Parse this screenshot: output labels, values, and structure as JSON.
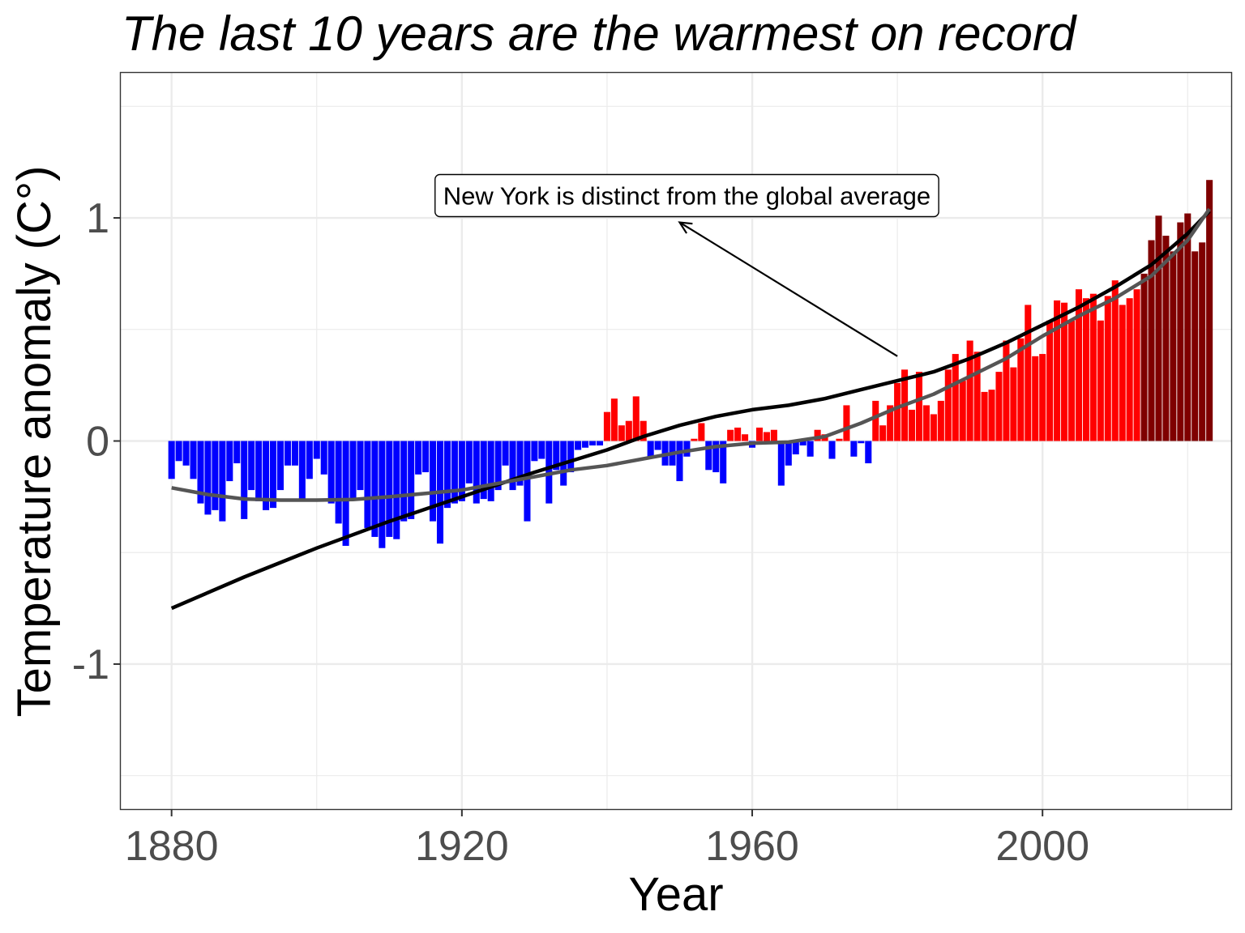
{
  "chart_data": {
    "type": "bar",
    "title": "The last 10 years are the warmest on record",
    "xlabel": "Year",
    "ylabel": "Temperature anomaly (C°)",
    "xlim": [
      1873,
      2026
    ],
    "ylim": [
      -1.65,
      1.65
    ],
    "x_ticks": [
      1880,
      1920,
      1960,
      2000
    ],
    "x_tick_labels": [
      "1880",
      "1920",
      "1960",
      "2000"
    ],
    "y_ticks": [
      -1,
      0,
      1
    ],
    "y_tick_labels": [
      "-1",
      "0",
      "1"
    ],
    "grid": true,
    "legend": "none",
    "colors": {
      "negative": "#0000ff",
      "positive": "#ff0000",
      "last_10_years": "#7f0000",
      "trend_linear": "#000000",
      "trend_smooth": "#555555",
      "grid": "#ebebeb"
    },
    "years": [
      1880,
      1881,
      1882,
      1883,
      1884,
      1885,
      1886,
      1887,
      1888,
      1889,
      1890,
      1891,
      1892,
      1893,
      1894,
      1895,
      1896,
      1897,
      1898,
      1899,
      1900,
      1901,
      1902,
      1903,
      1904,
      1905,
      1906,
      1907,
      1908,
      1909,
      1910,
      1911,
      1912,
      1913,
      1914,
      1915,
      1916,
      1917,
      1918,
      1919,
      1920,
      1921,
      1922,
      1923,
      1924,
      1925,
      1926,
      1927,
      1928,
      1929,
      1930,
      1931,
      1932,
      1933,
      1934,
      1935,
      1936,
      1937,
      1938,
      1939,
      1940,
      1941,
      1942,
      1943,
      1944,
      1945,
      1946,
      1947,
      1948,
      1949,
      1950,
      1951,
      1952,
      1953,
      1954,
      1955,
      1956,
      1957,
      1958,
      1959,
      1960,
      1961,
      1962,
      1963,
      1964,
      1965,
      1966,
      1967,
      1968,
      1969,
      1970,
      1971,
      1972,
      1973,
      1974,
      1975,
      1976,
      1977,
      1978,
      1979,
      1980,
      1981,
      1982,
      1983,
      1984,
      1985,
      1986,
      1987,
      1988,
      1989,
      1990,
      1991,
      1992,
      1993,
      1994,
      1995,
      1996,
      1997,
      1998,
      1999,
      2000,
      2001,
      2002,
      2003,
      2004,
      2005,
      2006,
      2007,
      2008,
      2009,
      2010,
      2011,
      2012,
      2013,
      2014,
      2015,
      2016,
      2017,
      2018,
      2019,
      2020,
      2021,
      2022,
      2023
    ],
    "values": [
      -0.17,
      -0.09,
      -0.11,
      -0.17,
      -0.28,
      -0.33,
      -0.31,
      -0.36,
      -0.18,
      -0.1,
      -0.35,
      -0.22,
      -0.27,
      -0.31,
      -0.3,
      -0.22,
      -0.11,
      -0.11,
      -0.27,
      -0.17,
      -0.08,
      -0.15,
      -0.28,
      -0.37,
      -0.47,
      -0.26,
      -0.22,
      -0.39,
      -0.43,
      -0.48,
      -0.43,
      -0.44,
      -0.36,
      -0.35,
      -0.15,
      -0.14,
      -0.36,
      -0.46,
      -0.3,
      -0.28,
      -0.27,
      -0.19,
      -0.28,
      -0.26,
      -0.27,
      -0.22,
      -0.11,
      -0.22,
      -0.2,
      -0.36,
      -0.09,
      -0.08,
      -0.28,
      -0.13,
      -0.2,
      -0.14,
      -0.04,
      -0.03,
      -0.02,
      -0.02,
      0.13,
      0.19,
      0.07,
      0.09,
      0.2,
      0.09,
      -0.07,
      -0.04,
      -0.11,
      -0.11,
      -0.18,
      -0.07,
      0.01,
      0.08,
      -0.13,
      -0.14,
      -0.19,
      0.05,
      0.06,
      0.03,
      -0.03,
      0.06,
      0.04,
      0.05,
      -0.2,
      -0.11,
      -0.06,
      -0.02,
      -0.07,
      0.05,
      0.03,
      -0.08,
      0.01,
      0.16,
      -0.07,
      -0.01,
      -0.1,
      0.18,
      0.07,
      0.16,
      0.26,
      0.32,
      0.14,
      0.31,
      0.16,
      0.12,
      0.18,
      0.32,
      0.39,
      0.27,
      0.45,
      0.4,
      0.22,
      0.23,
      0.31,
      0.45,
      0.33,
      0.46,
      0.61,
      0.38,
      0.39,
      0.54,
      0.63,
      0.62,
      0.54,
      0.68,
      0.64,
      0.66,
      0.54,
      0.65,
      0.72,
      0.61,
      0.64,
      0.68,
      0.75,
      0.9,
      1.01,
      0.92,
      0.85,
      0.98,
      1.02,
      0.85,
      0.89,
      1.17
    ],
    "trend_linear": {
      "x": [
        1880,
        1890,
        1900,
        1910,
        1920,
        1930,
        1940,
        1945,
        1950,
        1955,
        1960,
        1965,
        1970,
        1975,
        1980,
        1985,
        1990,
        1995,
        2000,
        2005,
        2010,
        2015,
        2020,
        2023
      ],
      "y": [
        -0.75,
        -0.61,
        -0.48,
        -0.36,
        -0.25,
        -0.14,
        -0.04,
        0.02,
        0.07,
        0.11,
        0.14,
        0.16,
        0.19,
        0.23,
        0.27,
        0.31,
        0.37,
        0.44,
        0.52,
        0.6,
        0.69,
        0.79,
        0.93,
        1.03
      ]
    },
    "trend_smooth": {
      "x": [
        1880,
        1885,
        1890,
        1895,
        1900,
        1905,
        1910,
        1915,
        1920,
        1925,
        1930,
        1935,
        1940,
        1945,
        1950,
        1955,
        1960,
        1965,
        1970,
        1975,
        1980,
        1985,
        1990,
        1995,
        2000,
        2005,
        2010,
        2015,
        2020,
        2023
      ],
      "y": [
        -0.21,
        -0.24,
        -0.26,
        -0.265,
        -0.265,
        -0.262,
        -0.25,
        -0.235,
        -0.22,
        -0.19,
        -0.16,
        -0.13,
        -0.11,
        -0.08,
        -0.05,
        -0.025,
        -0.01,
        -0.005,
        0.02,
        0.08,
        0.15,
        0.21,
        0.29,
        0.37,
        0.47,
        0.56,
        0.64,
        0.74,
        0.9,
        1.04
      ]
    },
    "annotation": {
      "text": "New York is distinct from the global average",
      "arrow_from": [
        1980,
        0.38
      ],
      "arrow_to": [
        1950,
        0.98
      ],
      "box_center": [
        1951,
        1.1
      ]
    }
  }
}
